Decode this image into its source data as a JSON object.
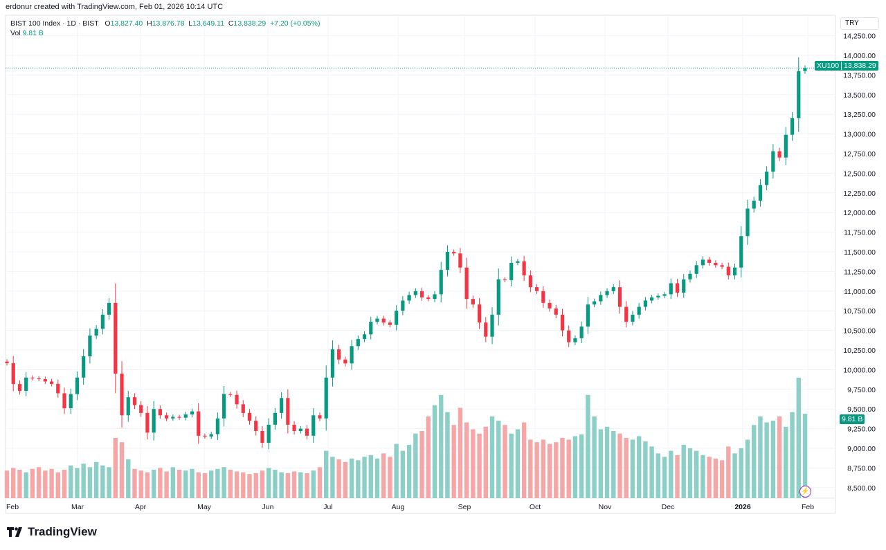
{
  "credit": "erdonur created with TradingView.com, Feb 01, 2026 10:14 UTC",
  "legend": {
    "symbol": "BIST 100 Index · 1D · BIST",
    "o_label": "O",
    "o": "13,827.40",
    "h_label": "H",
    "h": "13,876.78",
    "l_label": "L",
    "l": "13,649.11",
    "c_label": "C",
    "c": "13,838.29",
    "change": "+7.20 (+0.05%)",
    "vol_label": "Vol",
    "vol": "9.81 B"
  },
  "currency": "TRY",
  "price_tag": {
    "ticker": "XU100",
    "value": "13,838.29"
  },
  "volume_tag": "9.81 B",
  "brand": "TradingView",
  "colors": {
    "up": "#089981",
    "down": "#f23645",
    "up_vol": "#8ccfc6",
    "down_vol": "#f5a7a7",
    "grid": "#f0f3fa"
  },
  "chart_data": {
    "type": "candlestick",
    "price_ticks": [
      "14,250.00",
      "14,000.00",
      "13,750.00",
      "13,500.00",
      "13,250.00",
      "13,000.00",
      "12,750.00",
      "12,500.00",
      "12,250.00",
      "12,000.00",
      "11,750.00",
      "11,500.00",
      "11,250.00",
      "11,000.00",
      "10,750.00",
      "10,500.00",
      "10,250.00",
      "10,000.00",
      "9,750.00",
      "9,500.00",
      "9,250.00",
      "9,000.00",
      "8,750.00",
      "8,500.00"
    ],
    "ylim": [
      8500,
      14250
    ],
    "time_ticks": [
      "Feb",
      "Mar",
      "Apr",
      "May",
      "Jun",
      "Jul",
      "Aug",
      "Sep",
      "Oct",
      "Nov",
      "Dec",
      "2026",
      "Feb"
    ],
    "last_price": 13838.29,
    "closes": [
      10083,
      9818,
      9730,
      9900,
      9890,
      9880,
      9850,
      9820,
      9700,
      9510,
      9690,
      9900,
      10170,
      10435,
      10520,
      10700,
      10850,
      9950,
      9420,
      9650,
      9550,
      9450,
      9200,
      9500,
      9420,
      9380,
      9400,
      9390,
      9430,
      9470,
      9160,
      9150,
      9180,
      9380,
      9690,
      9680,
      9560,
      9450,
      9350,
      9220,
      9070,
      9300,
      9450,
      9640,
      9300,
      9220,
      9250,
      9160,
      9420,
      9380,
      9900,
      10260,
      10130,
      10080,
      10300,
      10390,
      10450,
      10610,
      10650,
      10600,
      10570,
      10750,
      10880,
      10950,
      11000,
      10920,
      10900,
      10960,
      11270,
      11500,
      11480,
      11300,
      10900,
      10830,
      10600,
      10420,
      10700,
      11150,
      11140,
      11360,
      11380,
      11200,
      11050,
      11000,
      10850,
      10780,
      10700,
      10500,
      10350,
      10400,
      10550,
      10830,
      10870,
      10950,
      11000,
      11050,
      10800,
      10610,
      10700,
      10800,
      10880,
      10920,
      10940,
      10960,
      11100,
      10980,
      11150,
      11220,
      11330,
      11400,
      11360,
      11330,
      11310,
      11200,
      11300,
      11700,
      12050,
      12150,
      12350,
      12520,
      12780,
      12700,
      12990,
      13200,
      13800,
      13838.29
    ],
    "volumes_b": [
      3.2,
      3.5,
      3.3,
      3.0,
      3.4,
      3.6,
      3.2,
      3.4,
      3.0,
      3.3,
      3.8,
      3.5,
      4.0,
      3.6,
      4.2,
      3.8,
      3.6,
      7.0,
      6.5,
      4.5,
      3.4,
      3.2,
      3.0,
      3.3,
      3.5,
      3.1,
      3.6,
      3.3,
      3.2,
      3.4,
      3.0,
      2.9,
      3.2,
      3.4,
      3.6,
      3.3,
      3.1,
      3.0,
      2.8,
      2.9,
      3.2,
      3.5,
      3.3,
      3.0,
      2.9,
      3.1,
      3.0,
      2.9,
      3.2,
      3.6,
      5.5,
      4.8,
      4.5,
      4.2,
      4.6,
      4.4,
      4.8,
      5.0,
      4.6,
      5.2,
      4.8,
      6.3,
      5.5,
      6.2,
      7.5,
      7.8,
      9.5,
      10.8,
      12.0,
      10.0,
      8.5,
      10.5,
      8.8,
      8.0,
      7.5,
      8.3,
      9.5,
      9.0,
      8.5,
      7.5,
      8.0,
      8.8,
      6.8,
      6.5,
      6.8,
      6.3,
      6.5,
      7.0,
      6.8,
      7.2,
      7.4,
      12.0,
      9.5,
      8.0,
      8.3,
      7.8,
      7.5,
      7.0,
      6.8,
      7.2,
      6.6,
      6.0,
      5.2,
      4.8,
      5.5,
      5.0,
      6.2,
      5.8,
      5.5,
      5.0,
      4.8,
      4.6,
      4.4,
      6.0,
      5.2,
      5.8,
      6.8,
      8.5,
      9.5,
      8.8,
      9.0,
      9.5,
      8.3,
      10.0,
      14.0,
      9.81
    ]
  }
}
